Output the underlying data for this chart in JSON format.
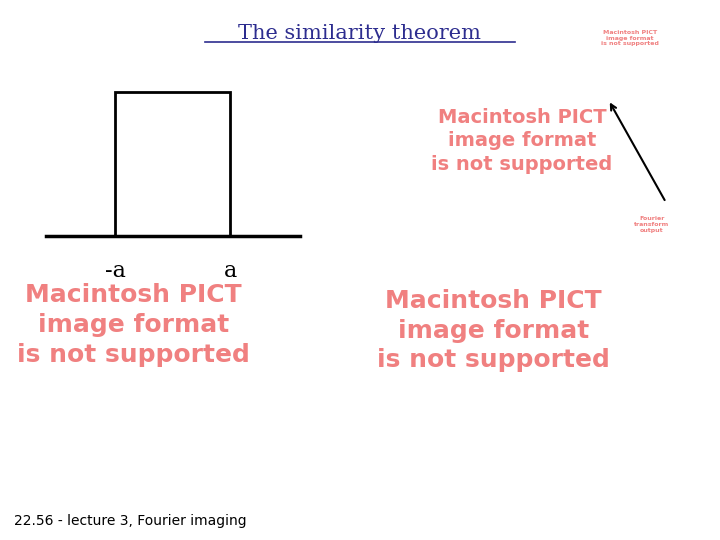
{
  "title": "The similarity theorem",
  "title_color": "#2d2d8f",
  "title_fontsize": 15,
  "background_color": "#ffffff",
  "label_minus_a": "-a",
  "label_a": "a",
  "label_fontsize": 16,
  "pict_color": "#f08080",
  "pict_text_top_right": "Macintosh PICT\nimage format\nis not supported",
  "pict_text_bottom_left": "Macintosh PICT\nimage format\nis not supported",
  "pict_text_bottom_right": "Macintosh PICT\nimage format\nis not supported",
  "pict_tiny_top": "Macintosh PICT\nimage format\nis not supported",
  "pict_tiny_bottom": "Fourier\ntransform\noutput",
  "footer_text": "22.56 - lecture 3, Fourier imaging",
  "footer_fontsize": 10
}
